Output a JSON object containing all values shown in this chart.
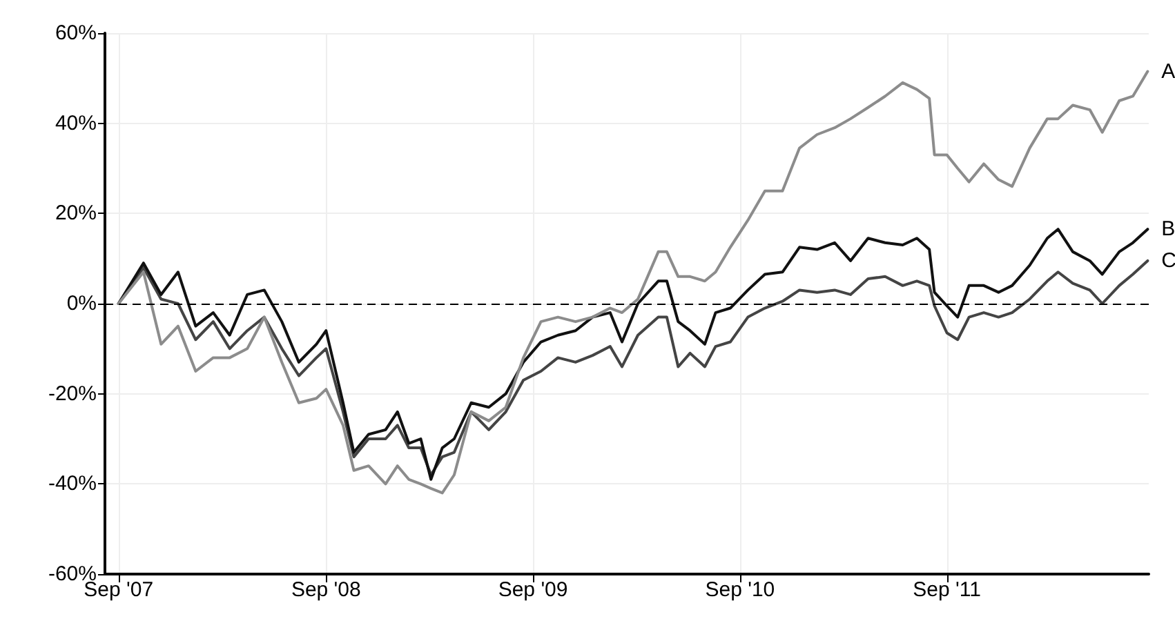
{
  "chart_data": {
    "type": "line",
    "x": [
      "2007-09-01",
      "2007-10-15",
      "2007-11-15",
      "2007-12-15",
      "2008-01-15",
      "2008-02-15",
      "2008-03-15",
      "2008-04-15",
      "2008-05-15",
      "2008-06-15",
      "2008-07-15",
      "2008-08-15",
      "2008-09-01",
      "2008-10-01",
      "2008-10-20",
      "2008-11-15",
      "2008-12-15",
      "2009-01-05",
      "2009-01-25",
      "2009-02-15",
      "2009-03-05",
      "2009-03-25",
      "2009-04-15",
      "2009-05-15",
      "2009-06-15",
      "2009-07-15",
      "2009-08-15",
      "2009-09-15",
      "2009-10-15",
      "2009-11-15",
      "2009-12-15",
      "2010-01-15",
      "2010-02-05",
      "2010-03-05",
      "2010-04-10",
      "2010-04-25",
      "2010-05-15",
      "2010-06-05",
      "2010-07-01",
      "2010-07-20",
      "2010-08-15",
      "2010-09-15",
      "2010-10-15",
      "2010-11-15",
      "2010-12-15",
      "2011-01-15",
      "2011-02-15",
      "2011-03-15",
      "2011-04-15",
      "2011-05-15",
      "2011-06-15",
      "2011-07-10",
      "2011-08-01",
      "2011-08-10",
      "2011-09-01",
      "2011-09-20",
      "2011-10-10",
      "2011-11-05",
      "2011-12-01",
      "2011-12-25",
      "2012-01-25",
      "2012-02-25",
      "2012-03-15",
      "2012-04-10",
      "2012-05-10",
      "2012-06-01",
      "2012-07-01",
      "2012-07-25",
      "2012-08-20"
    ],
    "series": [
      {
        "name": "A",
        "color": "#8c8c8c",
        "values": [
          0,
          7,
          -9,
          -5,
          -15,
          -12,
          -12,
          -10,
          -3,
          -13,
          -22,
          -21,
          -19,
          -27,
          -37,
          -36,
          -40,
          -36,
          -39,
          -40,
          -41,
          -42,
          -38,
          -24,
          -26,
          -23,
          -12,
          -4,
          -3,
          -4,
          -3,
          -1,
          -2,
          1,
          11.5,
          11.5,
          6,
          6,
          5,
          7,
          12.5,
          18.5,
          25,
          25,
          34.5,
          37.5,
          39,
          41,
          43.5,
          46,
          49,
          47.5,
          45.5,
          33,
          33,
          30,
          27,
          31,
          27.5,
          26,
          34.5,
          41,
          41,
          44,
          43,
          38,
          45,
          46,
          51.5
        ]
      },
      {
        "name": "B",
        "color": "#111111",
        "values": [
          0,
          9,
          2,
          7,
          -5,
          -2,
          -7,
          2,
          3,
          -4,
          -13,
          -9,
          -6,
          -22,
          -33,
          -29,
          -28,
          -24,
          -31,
          -30,
          -39,
          -32,
          -30,
          -22,
          -23,
          -20,
          -13,
          -8.5,
          -7,
          -6,
          -3,
          -2,
          -8.5,
          0,
          5,
          5,
          -4,
          -6,
          -9,
          -2,
          -1,
          3,
          6.5,
          7,
          12.5,
          12,
          13.5,
          9.5,
          14.5,
          13.5,
          13,
          14.5,
          12,
          2.5,
          -0.5,
          -3,
          4,
          4,
          2.5,
          4,
          8.5,
          14.5,
          16.5,
          11.5,
          9.5,
          6.5,
          11.5,
          13.5,
          16.5
        ]
      },
      {
        "name": "C",
        "color": "#444444",
        "values": [
          0,
          8,
          1,
          0,
          -8,
          -4,
          -10,
          -6,
          -3,
          -10,
          -16,
          -12,
          -10,
          -24,
          -34,
          -30,
          -30,
          -27,
          -32,
          -32,
          -38,
          -34,
          -33,
          -24,
          -28,
          -24,
          -17,
          -15,
          -12,
          -13,
          -11.5,
          -9.5,
          -14,
          -7,
          -3,
          -3,
          -14,
          -11,
          -14,
          -9.5,
          -8.5,
          -3,
          -1,
          0.5,
          3,
          2.5,
          3,
          2,
          5.5,
          6,
          4,
          5,
          4,
          -0.5,
          -6.5,
          -8,
          -3,
          -2,
          -3,
          -2,
          1,
          5,
          7,
          4.5,
          3,
          0,
          4,
          6.5,
          9.5
        ]
      }
    ],
    "xlim": [
      "2007-08-08",
      "2012-08-22"
    ],
    "xticks": [
      {
        "value": "2007-09-01",
        "label": "Sep '07"
      },
      {
        "value": "2008-09-01",
        "label": "Sep '08"
      },
      {
        "value": "2009-09-01",
        "label": "Sep '09"
      },
      {
        "value": "2010-09-01",
        "label": "Sep '10"
      },
      {
        "value": "2011-09-01",
        "label": "Sep '11"
      }
    ],
    "ylim": [
      -60,
      60
    ],
    "yticks": [
      {
        "value": -60,
        "label": "-60%"
      },
      {
        "value": -40,
        "label": "-40%"
      },
      {
        "value": -20,
        "label": "-20%"
      },
      {
        "value": 0,
        "label": "0%"
      },
      {
        "value": 20,
        "label": "20%"
      },
      {
        "value": 40,
        "label": "40%"
      },
      {
        "value": 60,
        "label": "60%"
      }
    ],
    "ref_lines": [
      {
        "axis": "y",
        "value": 0,
        "color": "#000000",
        "line_style": "dashed"
      }
    ],
    "grid": true,
    "legend": false,
    "marker": "none",
    "line_style": "solid"
  }
}
